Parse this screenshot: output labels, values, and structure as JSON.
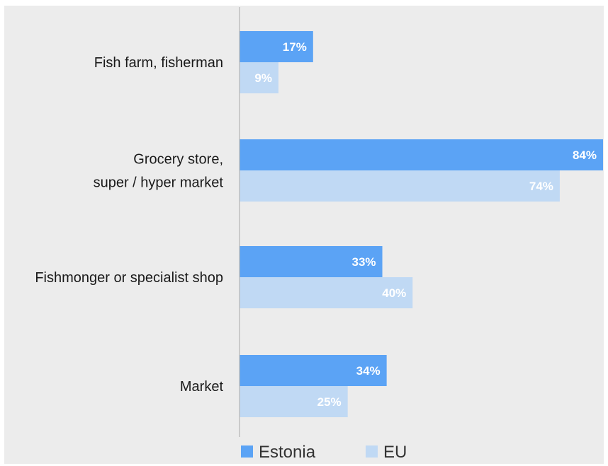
{
  "chart_data": {
    "type": "bar",
    "orientation": "horizontal",
    "categories": [
      [
        "Fish farm, fisherman"
      ],
      [
        "Grocery store,",
        "super / hyper market"
      ],
      [
        "Fishmonger or specialist shop"
      ],
      [
        "Market"
      ]
    ],
    "series": [
      {
        "name": "Estonia",
        "color": "#5ba3f5",
        "values": [
          17,
          84,
          33,
          34
        ],
        "labels": [
          "17%",
          "84%",
          "33%",
          "34%"
        ]
      },
      {
        "name": "EU",
        "color": "#c0d9f4",
        "values": [
          9,
          74,
          40,
          25
        ],
        "labels": [
          "9%",
          "74%",
          "40%",
          "25%"
        ]
      }
    ],
    "xlim": [
      0,
      84
    ],
    "unit": "%",
    "grid": false,
    "legend_position": "bottom"
  }
}
